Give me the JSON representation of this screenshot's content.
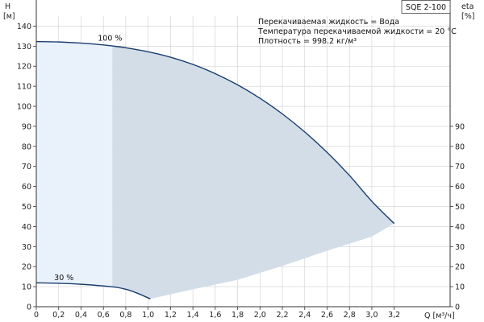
{
  "chart_data": {
    "type": "area",
    "title": "SQE 2-100",
    "info_lines": [
      "Перекачиваемая жидкость = Вода",
      "Температура перекачиваемой жидкости = 20 °C",
      "Плотность = 998.2 кг/м³"
    ],
    "x_axis": {
      "label": "Q [м³/ч]",
      "range": [
        0,
        3.7
      ],
      "ticks": [
        0,
        0.2,
        0.4,
        0.6,
        0.8,
        1.0,
        1.2,
        1.4,
        1.6,
        1.8,
        2.0,
        2.2,
        2.4,
        2.6,
        2.8,
        3.0,
        3.2
      ],
      "tick_labels": [
        "0",
        "0,2",
        "0,4",
        "0,6",
        "0,8",
        "1,0",
        "1,2",
        "1,4",
        "1,6",
        "1,8",
        "2,0",
        "2,2",
        "2,4",
        "2,6",
        "2,8",
        "3,0",
        "3,2"
      ]
    },
    "y_left": {
      "label_line1": "H",
      "label_line2": "[м]",
      "range": [
        0,
        145
      ],
      "ticks": [
        0,
        10,
        20,
        30,
        40,
        50,
        60,
        70,
        80,
        90,
        100,
        110,
        120,
        130,
        140
      ],
      "tick_labels": [
        "0",
        "10",
        "20",
        "30",
        "40",
        "50",
        "60",
        "70",
        "80",
        "90",
        "100",
        "110",
        "120",
        "130",
        "140"
      ]
    },
    "y_right": {
      "label_line1": "eta",
      "label_line2": "[%]",
      "range": [
        0,
        145
      ],
      "ticks": [
        0,
        10,
        20,
        30,
        40,
        50,
        60,
        70,
        80,
        90
      ],
      "tick_labels": [
        "0",
        "10",
        "20",
        "30",
        "40",
        "50",
        "60",
        "70",
        "80",
        "90"
      ]
    },
    "grid": true,
    "series": [
      {
        "name": "100 %",
        "points": [
          [
            0,
            132.3
          ],
          [
            0.2,
            132.1
          ],
          [
            0.4,
            131.5
          ],
          [
            0.6,
            130.6
          ],
          [
            0.68,
            130.1
          ],
          [
            0.8,
            129.2
          ],
          [
            1.0,
            127.2
          ],
          [
            1.2,
            124.5
          ],
          [
            1.4,
            120.9
          ],
          [
            1.6,
            116.3
          ],
          [
            1.8,
            110.7
          ],
          [
            2.0,
            104.0
          ],
          [
            2.2,
            96.2
          ],
          [
            2.4,
            87.2
          ],
          [
            2.6,
            77.0
          ],
          [
            2.8,
            65.5
          ],
          [
            3.0,
            52.6
          ],
          [
            3.2,
            41.5
          ]
        ]
      },
      {
        "name": "30 %",
        "points": [
          [
            0,
            11.9
          ],
          [
            0.2,
            11.7
          ],
          [
            0.4,
            11.2
          ],
          [
            0.68,
            9.9
          ],
          [
            0.8,
            8.7
          ],
          [
            0.9,
            6.8
          ],
          [
            1.02,
            3.9
          ]
        ]
      }
    ],
    "operating_range_lower": [
      [
        1.02,
        3.9
      ],
      [
        1.4,
        8.7
      ],
      [
        1.8,
        13.4
      ],
      [
        2.2,
        20.4
      ],
      [
        2.6,
        27.9
      ],
      [
        3.0,
        35.0
      ],
      [
        3.2,
        41.5
      ]
    ],
    "recommended_start_q": 0.68,
    "colors": {
      "curve": "#1a3d6e",
      "region_main": "#d2dde8",
      "region_light": "#e9f1fa",
      "grid": "#cfcfcf",
      "axis": "#333333"
    }
  }
}
